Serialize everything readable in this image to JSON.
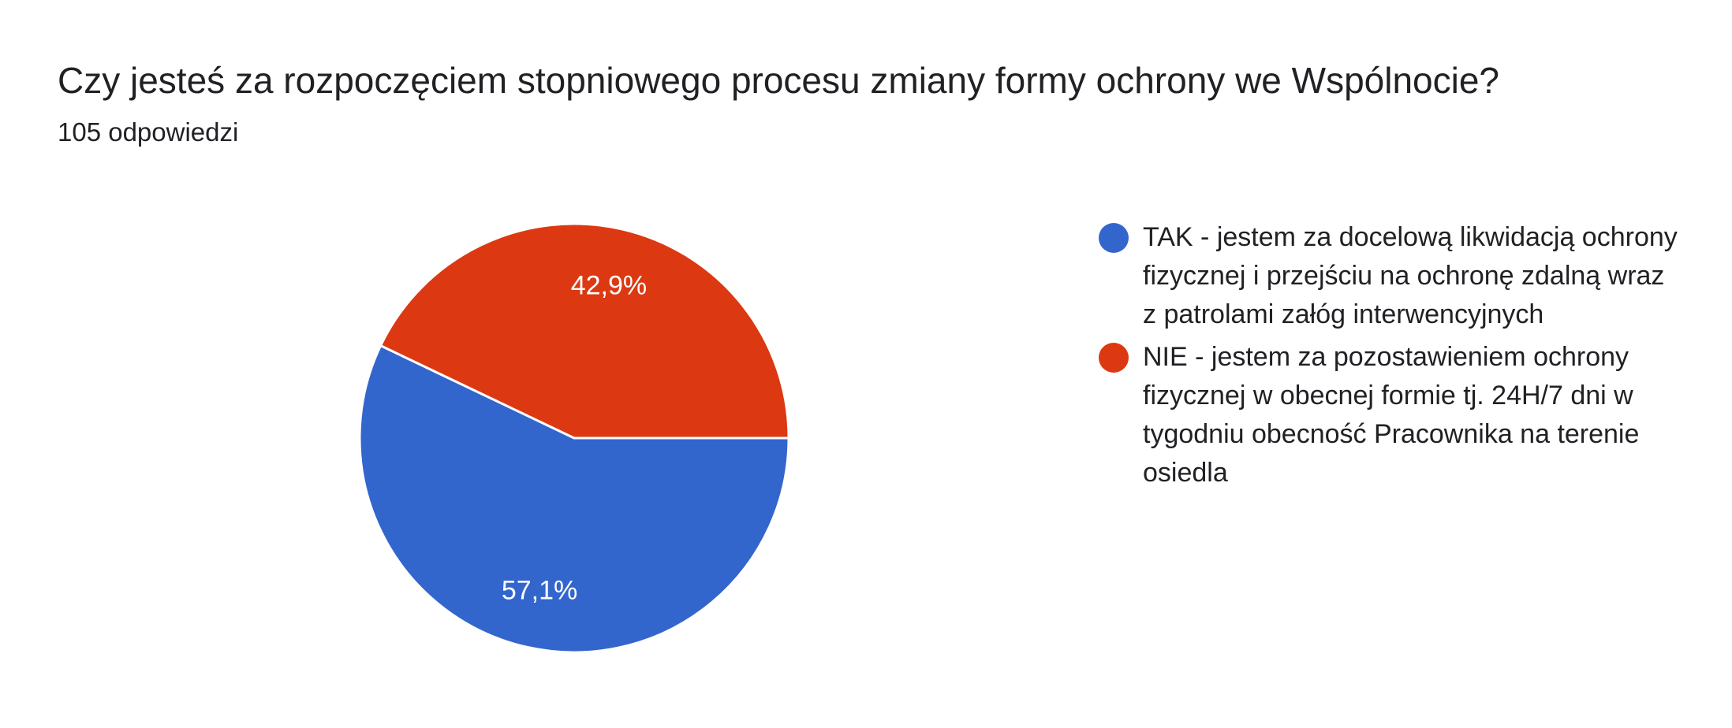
{
  "header": {
    "title": "Czy jesteś za rozpoczęciem stopniowego procesu zmiany formy ochrony we Wspólnocie?",
    "subtitle": "105 odpowiedzi"
  },
  "chart_data": {
    "type": "pie",
    "title": "Czy jesteś za rozpoczęciem stopniowego procesu zmiany formy ochrony we Wspólnocie?",
    "subtitle": "105 odpowiedzi",
    "legend_position": "right",
    "slices": [
      {
        "label": "TAK - jestem za docelową likwidacją ochrony fizycznej i przejściu na ochronę zdalną wraz z patrolami załóg interwencyjnych",
        "value": 57.1,
        "display": "57,1%",
        "color": "#3366cc"
      },
      {
        "label": "NIE - jestem za pozostawieniem ochrony fizycznej w obecnej formie tj. 24H/7 dni w tygodniu obecność Pracownika na terenie osiedla",
        "value": 42.9,
        "display": "42,9%",
        "color": "#dc3912"
      }
    ]
  }
}
